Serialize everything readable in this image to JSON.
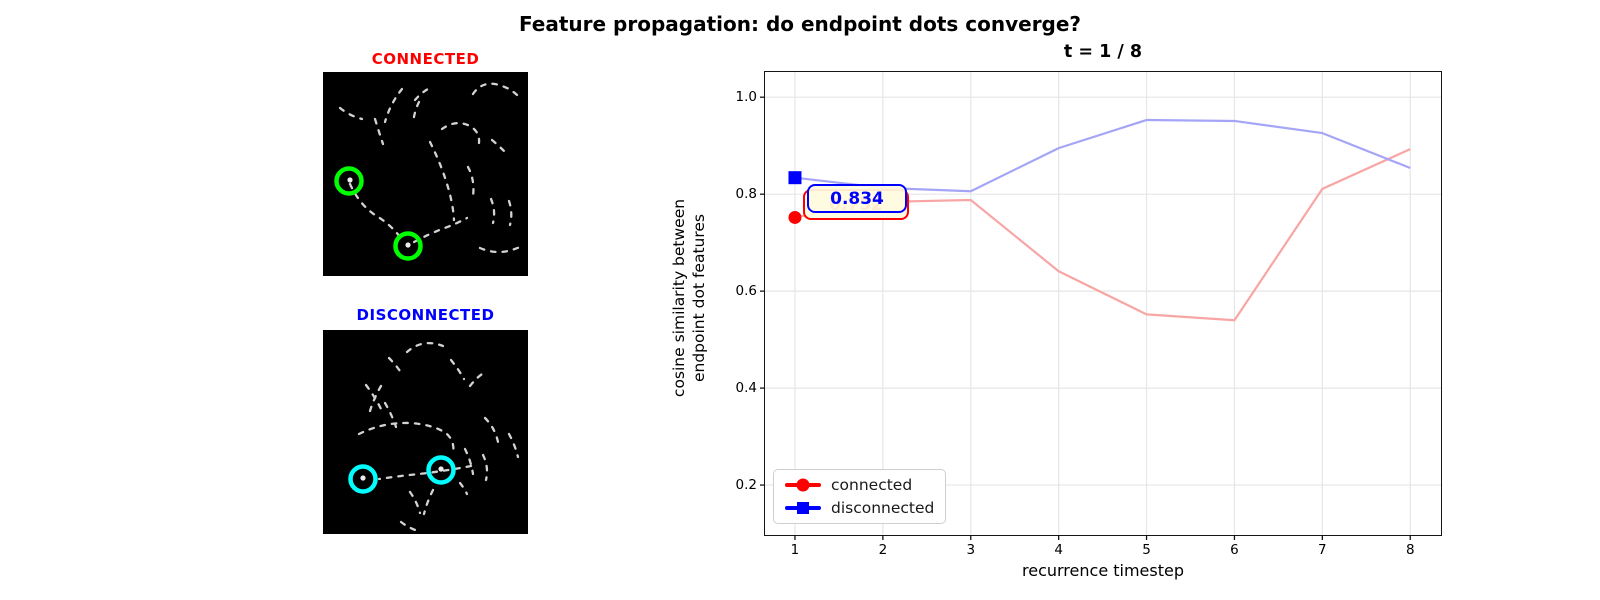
{
  "figure": {
    "title": "Feature propagation: do endpoint dots converge?"
  },
  "panels": {
    "connected": {
      "title": "CONNECTED"
    },
    "disconnected": {
      "title": "DISCONNECTED"
    }
  },
  "colors": {
    "connected": "#ff0000",
    "disconnected": "#0000ff",
    "connected_line": "#f8a5a5",
    "disconnected_line": "#a5a5f8",
    "ring_connected": "#00ff00",
    "ring_disconnected": "#00ffff",
    "annotation_bg": "#fffbe0",
    "grid": "#e6e6e6",
    "trail": "#d2d2d2",
    "panel_bg": "#000000"
  },
  "chart_data": {
    "type": "line",
    "title": "t = 1 / 8",
    "xlabel": "recurrence timestep",
    "ylabel": "cosine similarity between\nendpoint dot features",
    "x": [
      1,
      2,
      3,
      4,
      5,
      6,
      7,
      8
    ],
    "x_ticks": [
      "1",
      "2",
      "3",
      "4",
      "5",
      "6",
      "7",
      "8"
    ],
    "y_ticks": [
      "1.0",
      "0.8",
      "0.6",
      "0.4",
      "0.2"
    ],
    "y_tick_values": [
      1.0,
      0.8,
      0.6,
      0.4,
      0.2
    ],
    "xlim": [
      0.659,
      8.35
    ],
    "ylim": [
      0.097,
      1.052
    ],
    "grid": true,
    "legend_position": "lower left",
    "series": [
      {
        "name": "connected",
        "marker": "circle",
        "color": "#ff0000",
        "line_color": "#f8a5a5",
        "values": [
          0.752,
          0.784,
          0.788,
          0.641,
          0.552,
          0.54,
          0.811,
          0.893
        ]
      },
      {
        "name": "disconnected",
        "marker": "square",
        "color": "#0000ff",
        "line_color": "#a5a5f8",
        "values": [
          0.834,
          0.813,
          0.806,
          0.895,
          0.953,
          0.951,
          0.926,
          0.854
        ]
      }
    ],
    "annotations": [
      {
        "text": "0.752",
        "series": "connected",
        "color": "#ff0000",
        "x": 1,
        "y": 0.752
      },
      {
        "text": "0.834",
        "series": "disconnected",
        "color": "#0000ff",
        "x": 1,
        "y": 0.834
      }
    ]
  }
}
